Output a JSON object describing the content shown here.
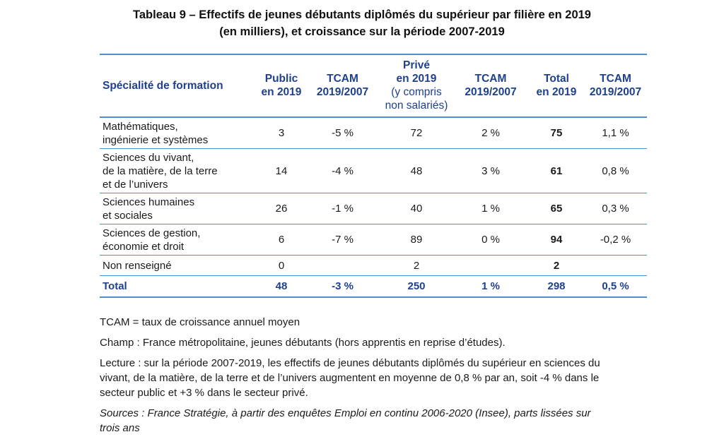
{
  "title": {
    "line1": "Tableau 9 – Effectifs de jeunes débutants diplômés du supérieur par filière en 2019",
    "line2": "(en milliers), et croissance sur la période 2007-2019"
  },
  "table": {
    "headers": {
      "specialite": "Spécialité de formation",
      "public": [
        "Public",
        "en 2019"
      ],
      "tcam1": [
        "TCAM",
        "2019/2007"
      ],
      "prive": [
        "Privé",
        "en 2019",
        "(y compris",
        "non salariés)"
      ],
      "tcam2": [
        "TCAM",
        "2019/2007"
      ],
      "total": [
        "Total",
        "en 2019"
      ],
      "tcam3": [
        "TCAM",
        "2019/2007"
      ]
    },
    "rows": [
      {
        "label": [
          "Mathématiques,",
          "ingénierie et systèmes"
        ],
        "public": "3",
        "tcam_public": "-5 %",
        "prive": "72",
        "tcam_prive": "2 %",
        "total": "75",
        "tcam_total": "1,1 %"
      },
      {
        "label": [
          "Sciences du vivant,",
          "de la matière, de la terre",
          "et de l’univers"
        ],
        "public": "14",
        "tcam_public": "-4 %",
        "prive": "48",
        "tcam_prive": "3 %",
        "total": "61",
        "tcam_total": "0,8 %"
      },
      {
        "label": [
          "Sciences humaines",
          "et sociales"
        ],
        "public": "26",
        "tcam_public": "-1 %",
        "prive": "40",
        "tcam_prive": "1 %",
        "total": "65",
        "tcam_total": "0,3 %"
      },
      {
        "label": [
          "Sciences de gestion,",
          "économie et droit"
        ],
        "public": "6",
        "tcam_public": "-7 %",
        "prive": "89",
        "tcam_prive": "0 %",
        "total": "94",
        "tcam_total": "-0,2 %"
      },
      {
        "label": [
          "Non renseigné"
        ],
        "public": "0",
        "tcam_public": "",
        "prive": "2",
        "tcam_prive": "",
        "total": "2",
        "tcam_total": ""
      }
    ],
    "total_row": {
      "label": "Total",
      "public": "48",
      "tcam_public": "-3 %",
      "prive": "250",
      "tcam_prive": "1 %",
      "total": "298",
      "tcam_total": "0,5 %"
    }
  },
  "notes": {
    "tcam": "TCAM = taux de croissance annuel moyen",
    "champ": "Champ : France métropolitaine, jeunes débutants (hors apprentis en reprise d’études).",
    "lecture_lines": [
      "Lecture : sur la période 2007-2019, les effectifs de jeunes débutants diplômés du supérieur en sciences du",
      "vivant, de la matière, de la terre et de l’univers augmentent en moyenne de 0,8 % par an, soit -4 % dans le",
      "secteur public et +3 % dans le secteur privé."
    ],
    "sources_lines": [
      "Sources : France Stratégie, à partir des enquêtes Emploi en continu 2006-2020 (Insee), parts lissées sur",
      "trois ans"
    ]
  }
}
